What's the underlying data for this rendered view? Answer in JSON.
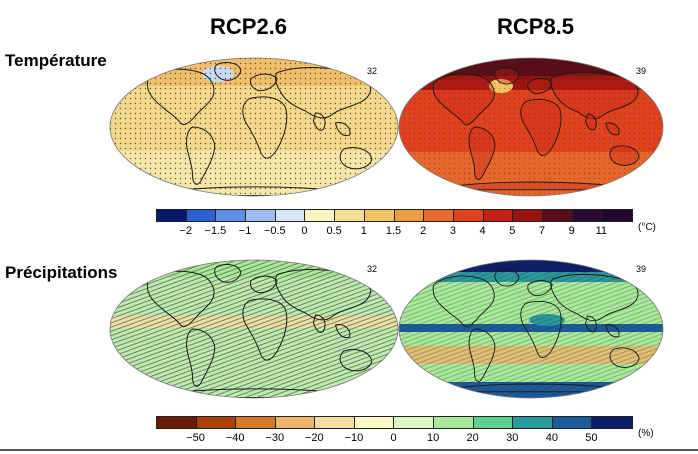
{
  "columns": {
    "left": "RCP2.6",
    "right": "RCP8.5"
  },
  "rows": {
    "temperature": "Température",
    "precipitation": "Précipitations"
  },
  "model_counts": {
    "temp_rcp26": "32",
    "temp_rcp85": "39",
    "precip_rcp26": "32",
    "precip_rcp85": "39"
  },
  "temperature_scale": {
    "unit": "(°C)",
    "labels": [
      "−2",
      "−1.5",
      "−1",
      "−0.5",
      "0",
      "0.5",
      "1",
      "1.5",
      "2",
      "3",
      "4",
      "5",
      "7",
      "9",
      "11"
    ],
    "colors": [
      "#08196b",
      "#2c5fd3",
      "#5b8ee6",
      "#9dbcf0",
      "#d7e7f9",
      "#fbf4c3",
      "#f5dd93",
      "#f2c360",
      "#ee9c40",
      "#e86c2c",
      "#e0421e",
      "#c52116",
      "#98120e",
      "#5a0e18",
      "#2c0a36",
      "#220630"
    ]
  },
  "precipitation_scale": {
    "unit": "(%)",
    "labels": [
      "−50",
      "−40",
      "−30",
      "−20",
      "−10",
      "0",
      "10",
      "20",
      "30",
      "40",
      "50"
    ],
    "colors": [
      "#6b1c05",
      "#a8420a",
      "#d27b2a",
      "#efb46a",
      "#f7dca0",
      "#fdf8c8",
      "#ddf6c2",
      "#a9ea9a",
      "#5fcf8e",
      "#2a9aa0",
      "#1d5c9c",
      "#0d1f6b"
    ]
  },
  "map_colors": {
    "temp_rcp26_fill": "#f5d98a",
    "temp_rcp85_fill": "#e0421e",
    "precip_rcp26_fill": "#bdebb0",
    "precip_rcp85_fill": "#a9ea9a",
    "continent_outline": "#1a1a1a"
  }
}
